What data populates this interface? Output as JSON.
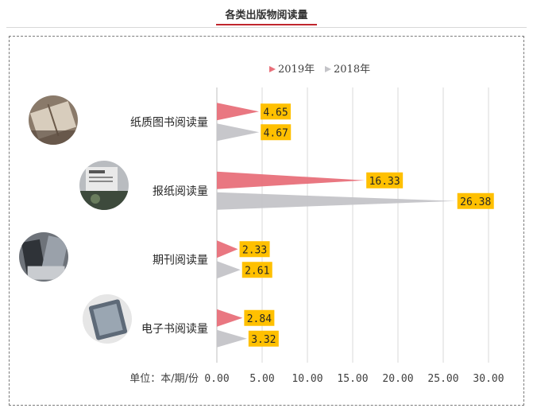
{
  "header": {
    "title": "各类出版物阅读量"
  },
  "colors": {
    "series_2019": "#e8707a",
    "series_2018": "#c4c4c8",
    "label_bg": "#ffc000",
    "accent": "#c0262d"
  },
  "icons": [
    "book-photo-icon",
    "newspaper-photo-icon",
    "magazine-photo-icon",
    "ebook-photo-icon"
  ],
  "chart_data": {
    "type": "bar",
    "orientation": "horizontal",
    "categories": [
      "纸质图书阅读量",
      "报纸阅读量",
      "期刊阅读量",
      "电子书阅读量"
    ],
    "series": [
      {
        "name": "2019年",
        "values": [
          4.65,
          16.33,
          2.33,
          2.84
        ]
      },
      {
        "name": "2018年",
        "values": [
          4.67,
          26.38,
          2.61,
          3.32
        ]
      }
    ],
    "value_labels": [
      [
        "4.65",
        "16.33",
        "2.33",
        "2.84"
      ],
      [
        "4.67",
        "26.38",
        "2.61",
        "3.32"
      ]
    ],
    "xlim": [
      0,
      30
    ],
    "xticks": [
      "0.00",
      "5.00",
      "10.00",
      "15.00",
      "20.00",
      "25.00",
      "30.00"
    ],
    "axis_unit_label": "单位：本/期/份",
    "legend_position": "top",
    "grid": true
  }
}
